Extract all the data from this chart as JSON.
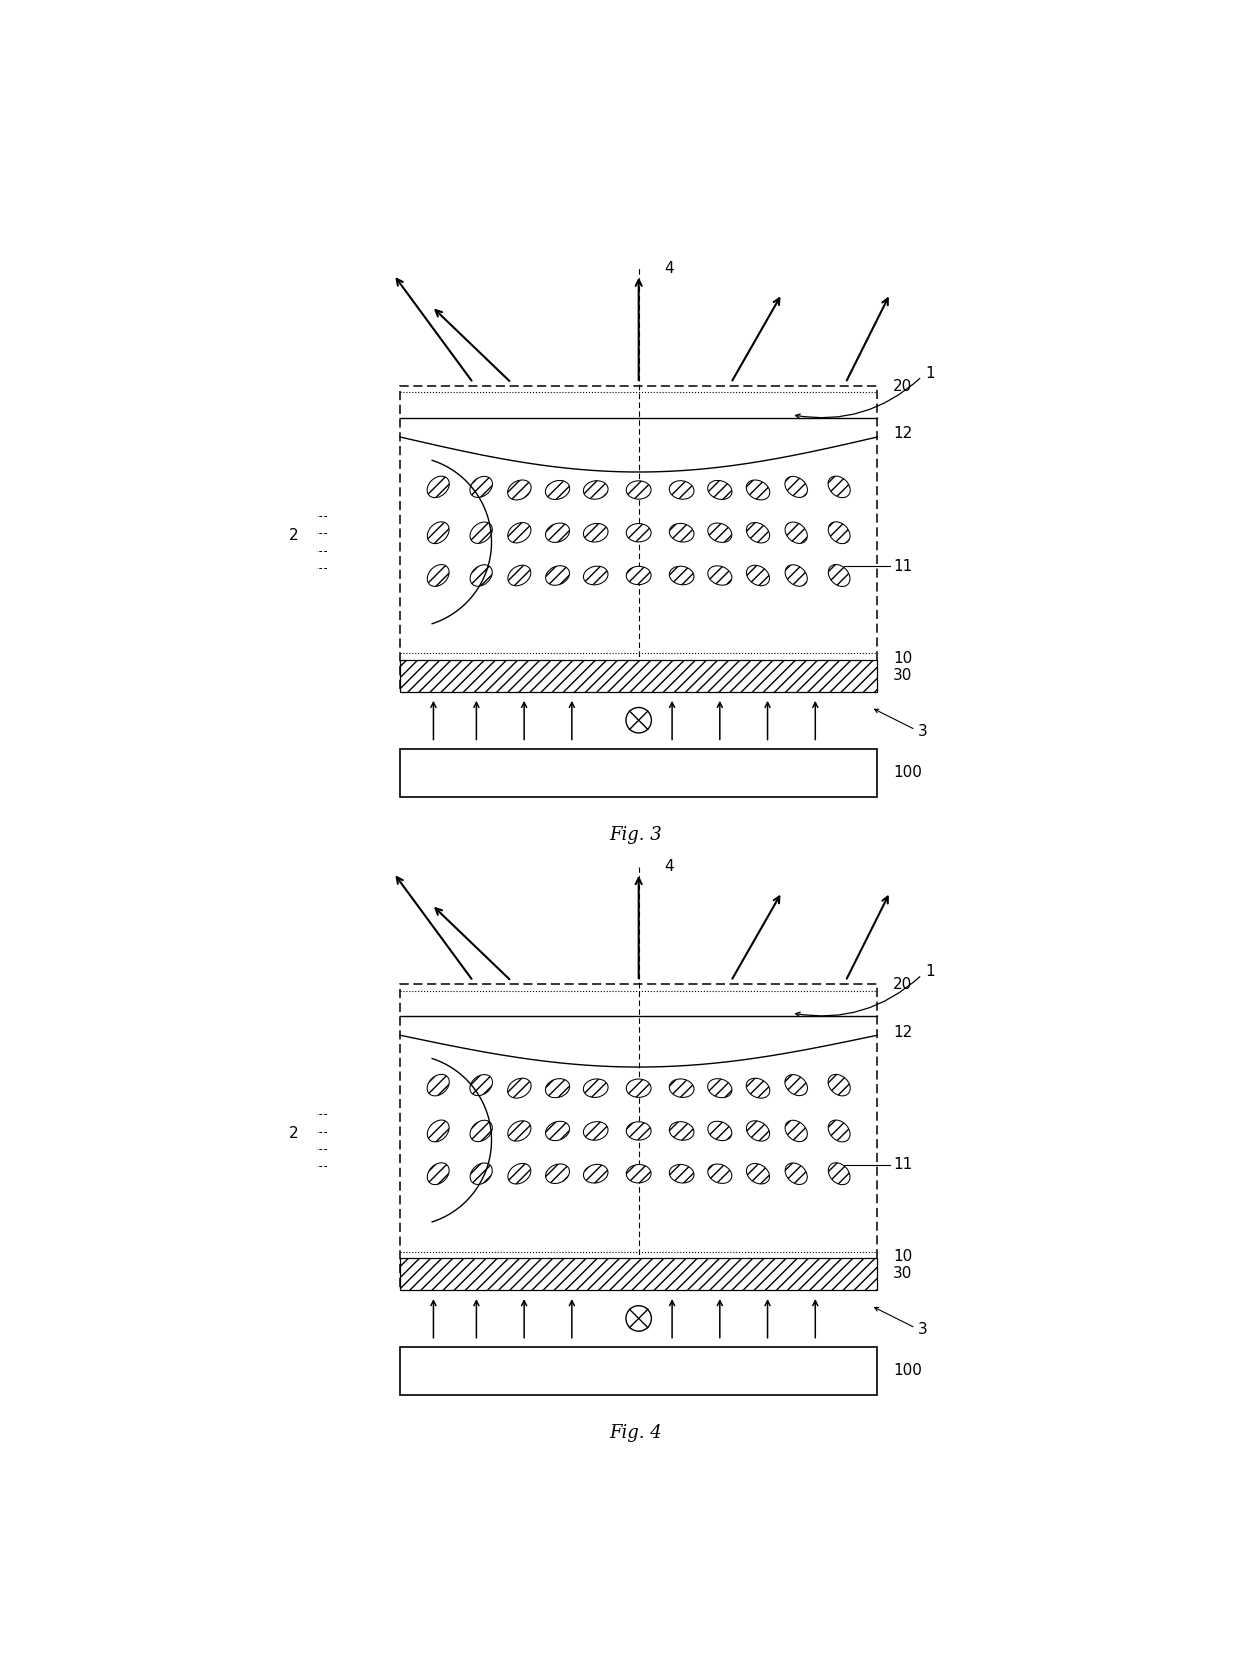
{
  "page_bg": "#ffffff",
  "line_color": "#000000",
  "fig3_label": "Fig. 3",
  "fig4_label": "Fig. 4",
  "label_fontsize": 11,
  "caption_fontsize": 13,
  "lc_rows": [
    [
      [
        0.08,
        0.67,
        42
      ],
      [
        0.17,
        0.67,
        38
      ],
      [
        0.25,
        0.66,
        28
      ],
      [
        0.33,
        0.66,
        18
      ],
      [
        0.41,
        0.66,
        9
      ],
      [
        0.5,
        0.66,
        0
      ],
      [
        0.59,
        0.66,
        -9
      ],
      [
        0.67,
        0.66,
        -18
      ],
      [
        0.75,
        0.66,
        -28
      ],
      [
        0.83,
        0.67,
        -38
      ],
      [
        0.92,
        0.67,
        -42
      ]
    ],
    [
      [
        0.08,
        0.52,
        45
      ],
      [
        0.17,
        0.52,
        41
      ],
      [
        0.25,
        0.52,
        32
      ],
      [
        0.33,
        0.52,
        22
      ],
      [
        0.41,
        0.52,
        11
      ],
      [
        0.5,
        0.52,
        0
      ],
      [
        0.59,
        0.52,
        -11
      ],
      [
        0.67,
        0.52,
        -22
      ],
      [
        0.75,
        0.52,
        -32
      ],
      [
        0.83,
        0.52,
        -41
      ],
      [
        0.92,
        0.52,
        -45
      ]
    ],
    [
      [
        0.08,
        0.38,
        45
      ],
      [
        0.17,
        0.38,
        42
      ],
      [
        0.25,
        0.38,
        34
      ],
      [
        0.33,
        0.38,
        24
      ],
      [
        0.41,
        0.38,
        13
      ],
      [
        0.5,
        0.38,
        2
      ],
      [
        0.59,
        0.38,
        -10
      ],
      [
        0.67,
        0.38,
        -22
      ],
      [
        0.75,
        0.38,
        -33
      ],
      [
        0.83,
        0.38,
        -42
      ],
      [
        0.92,
        0.38,
        -46
      ]
    ]
  ]
}
